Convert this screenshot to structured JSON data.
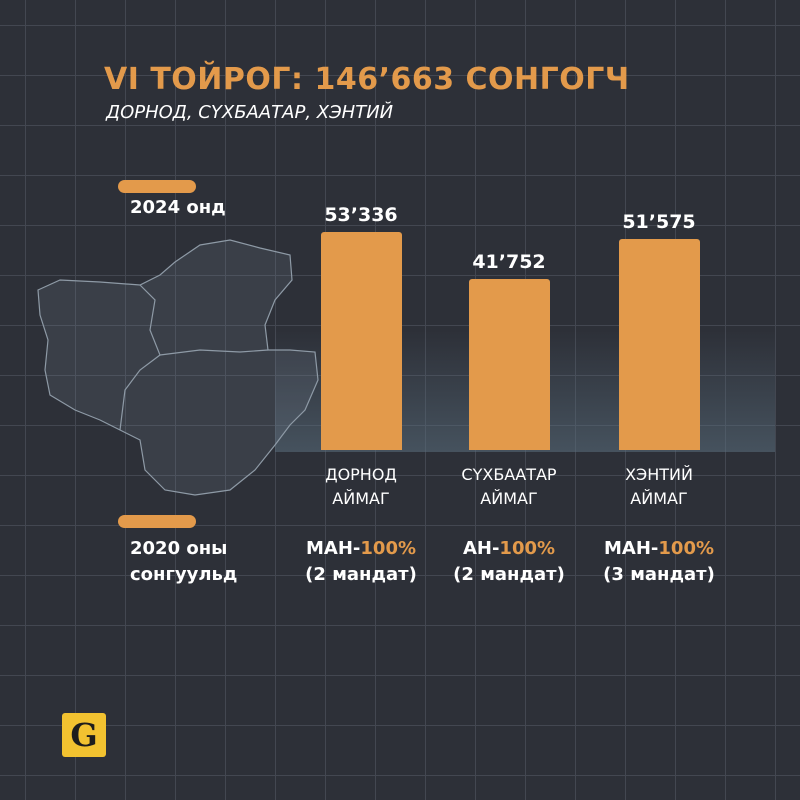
{
  "chart_data": {
    "type": "bar",
    "title": "VI ТОЙРОГ: 146’663 СОНГОГЧ",
    "subtitle": "ДОРНОД, СҮХБААТАР, ХЭНТИЙ",
    "legend_2024": "2024 онд",
    "legend_2020": "2020 оны сонгуульд",
    "categories": [
      "ДОРНОД АЙМАГ",
      "СҮХБААТАР АЙМАГ",
      "ХЭНТИЙ АЙМАГ"
    ],
    "values": [
      53336,
      41752,
      51575
    ],
    "value_labels": [
      "53’336",
      "41’752",
      "51’575"
    ],
    "color": "#e39a4b",
    "results_2020": [
      {
        "party": "МАН-",
        "share": "100%",
        "seats": "(2 мандат)"
      },
      {
        "party": "АН-",
        "share": "100%",
        "seats": "(2 мандат)"
      },
      {
        "party": "МАН-",
        "share": "100%",
        "seats": "(3 мандат)"
      }
    ]
  },
  "logo": "G"
}
